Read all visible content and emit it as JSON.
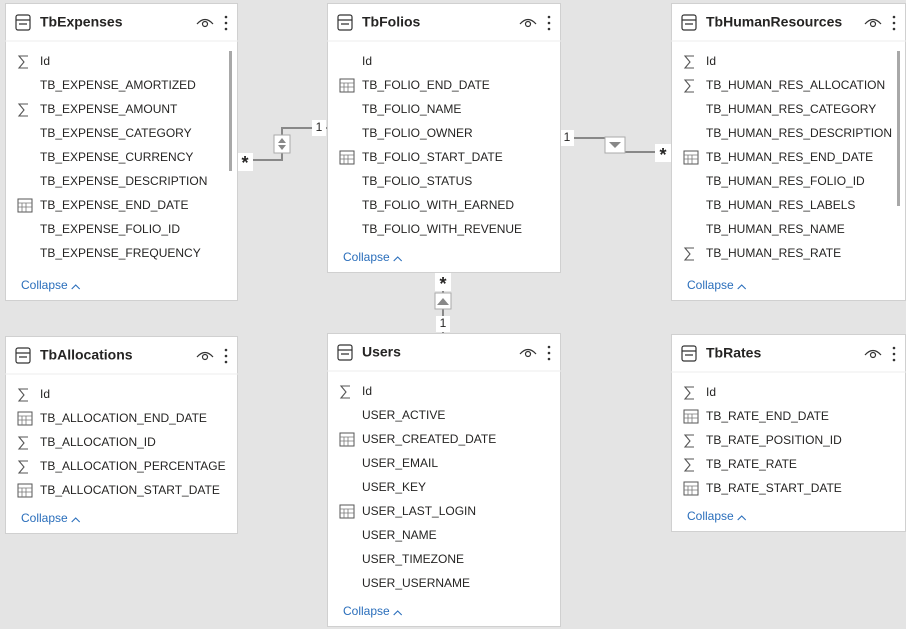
{
  "tables": [
    {
      "name": "TbExpenses",
      "collapse": "Collapse",
      "fields": [
        {
          "name": "Id",
          "icon": "sum"
        },
        {
          "name": "TB_EXPENSE_AMORTIZED"
        },
        {
          "name": "TB_EXPENSE_AMOUNT",
          "icon": "sum"
        },
        {
          "name": "TB_EXPENSE_CATEGORY"
        },
        {
          "name": "TB_EXPENSE_CURRENCY"
        },
        {
          "name": "TB_EXPENSE_DESCRIPTION"
        },
        {
          "name": "TB_EXPENSE_END_DATE",
          "icon": "date"
        },
        {
          "name": "TB_EXPENSE_FOLIO_ID"
        },
        {
          "name": "TB_EXPENSE_FREQUENCY"
        }
      ]
    },
    {
      "name": "TbFolios",
      "collapse": "Collapse",
      "fields": [
        {
          "name": "Id"
        },
        {
          "name": "TB_FOLIO_END_DATE",
          "icon": "date"
        },
        {
          "name": "TB_FOLIO_NAME"
        },
        {
          "name": "TB_FOLIO_OWNER"
        },
        {
          "name": "TB_FOLIO_START_DATE",
          "icon": "date"
        },
        {
          "name": "TB_FOLIO_STATUS"
        },
        {
          "name": "TB_FOLIO_WITH_EARNED"
        },
        {
          "name": "TB_FOLIO_WITH_REVENUE"
        }
      ]
    },
    {
      "name": "TbHumanResources",
      "collapse": "Collapse",
      "fields": [
        {
          "name": "Id",
          "icon": "sum"
        },
        {
          "name": "TB_HUMAN_RES_ALLOCATION",
          "icon": "sum"
        },
        {
          "name": "TB_HUMAN_RES_CATEGORY"
        },
        {
          "name": "TB_HUMAN_RES_DESCRIPTION"
        },
        {
          "name": "TB_HUMAN_RES_END_DATE",
          "icon": "date"
        },
        {
          "name": "TB_HUMAN_RES_FOLIO_ID"
        },
        {
          "name": "TB_HUMAN_RES_LABELS"
        },
        {
          "name": "TB_HUMAN_RES_NAME"
        },
        {
          "name": "TB_HUMAN_RES_RATE",
          "icon": "sum"
        }
      ]
    },
    {
      "name": "TbAllocations",
      "collapse": "Collapse",
      "fields": [
        {
          "name": "Id",
          "icon": "sum"
        },
        {
          "name": "TB_ALLOCATION_END_DATE",
          "icon": "date"
        },
        {
          "name": "TB_ALLOCATION_ID",
          "icon": "sum"
        },
        {
          "name": "TB_ALLOCATION_PERCENTAGE",
          "icon": "sum"
        },
        {
          "name": "TB_ALLOCATION_START_DATE",
          "icon": "date"
        }
      ]
    },
    {
      "name": "Users",
      "collapse": "Collapse",
      "fields": [
        {
          "name": "Id",
          "icon": "sum"
        },
        {
          "name": "USER_ACTIVE"
        },
        {
          "name": "USER_CREATED_DATE",
          "icon": "date"
        },
        {
          "name": "USER_EMAIL"
        },
        {
          "name": "USER_KEY"
        },
        {
          "name": "USER_LAST_LOGIN",
          "icon": "date"
        },
        {
          "name": "USER_NAME"
        },
        {
          "name": "USER_TIMEZONE"
        },
        {
          "name": "USER_USERNAME"
        }
      ]
    },
    {
      "name": "TbRates",
      "collapse": "Collapse",
      "fields": [
        {
          "name": "Id",
          "icon": "sum"
        },
        {
          "name": "TB_RATE_END_DATE",
          "icon": "date"
        },
        {
          "name": "TB_RATE_POSITION_ID",
          "icon": "sum"
        },
        {
          "name": "TB_RATE_RATE",
          "icon": "sum"
        },
        {
          "name": "TB_RATE_START_DATE",
          "icon": "date"
        }
      ]
    }
  ],
  "relationships": [
    {
      "many": "*",
      "one": "1"
    },
    {
      "one": "1",
      "many": "*"
    },
    {
      "many": "*",
      "one": "1"
    }
  ]
}
